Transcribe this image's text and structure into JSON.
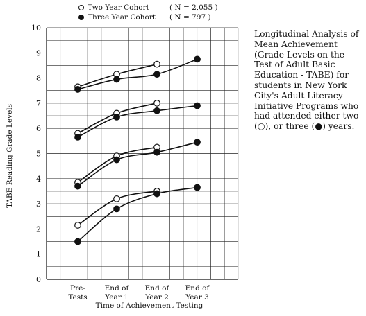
{
  "chart_data": {
    "type": "line",
    "legend": [
      {
        "marker": "open-circle",
        "label": "Two Year Cohort",
        "n": "( N = 2,055 )"
      },
      {
        "marker": "filled-circle",
        "label": "Three Year Cohort",
        "n": "( N = 797 )"
      }
    ],
    "caption": "Longitudinal Analysis of\nMean Achievement\n(Grade Levels on the\nTest of Adult Basic\nEducation - TABE) for\nstudents in New York\nCity's Adult Literacy\nInitiative Programs who\nhad attended either two\n(○), or three (●) years.",
    "xlabel": "Time of Achievement Testing",
    "ylabel": "TABE  Reading Grade Levels",
    "categories": [
      [
        "Pre-",
        "Tests"
      ],
      [
        "End of",
        "Year 1"
      ],
      [
        "End of",
        "Year 2"
      ],
      [
        "End of",
        "Year 3"
      ]
    ],
    "ylim": [
      0,
      10
    ],
    "yticks": [
      0,
      1,
      2,
      3,
      4,
      5,
      6,
      7,
      8,
      9,
      10
    ],
    "grid": true,
    "series": [
      {
        "cohort": "two-year",
        "marker": "open",
        "values": [
          7.65,
          8.15,
          8.55,
          null
        ]
      },
      {
        "cohort": "three-year",
        "marker": "filled",
        "values": [
          7.55,
          7.95,
          8.15,
          8.75
        ]
      },
      {
        "cohort": "two-year",
        "marker": "open",
        "values": [
          5.8,
          6.6,
          7.0,
          null
        ]
      },
      {
        "cohort": "three-year",
        "marker": "filled",
        "values": [
          5.65,
          6.45,
          6.7,
          6.9
        ]
      },
      {
        "cohort": "two-year",
        "marker": "open",
        "values": [
          3.85,
          4.9,
          5.25,
          null
        ]
      },
      {
        "cohort": "three-year",
        "marker": "filled",
        "values": [
          3.7,
          4.75,
          5.05,
          5.45
        ]
      },
      {
        "cohort": "two-year",
        "marker": "open",
        "values": [
          2.15,
          3.2,
          3.5,
          null
        ]
      },
      {
        "cohort": "three-year",
        "marker": "filled",
        "values": [
          1.5,
          2.8,
          3.4,
          3.65
        ]
      }
    ]
  }
}
